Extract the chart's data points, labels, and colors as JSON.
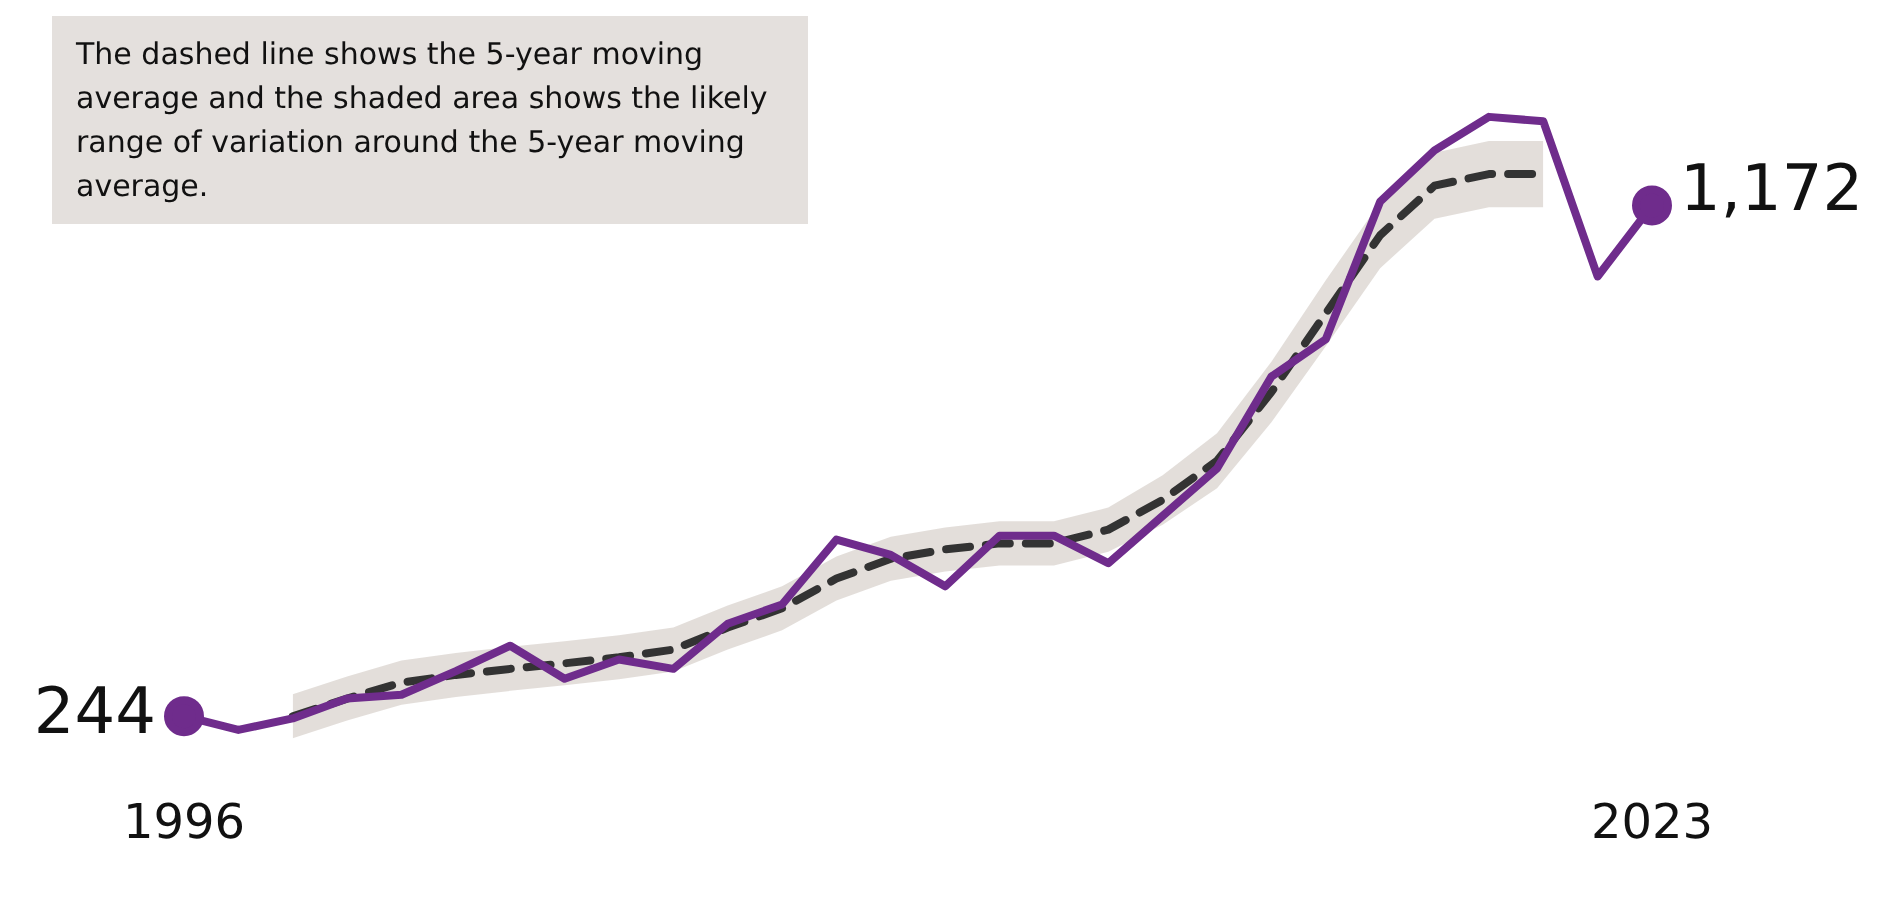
{
  "chart_data": {
    "type": "line",
    "x": [
      1996,
      1997,
      1998,
      1999,
      2000,
      2001,
      2002,
      2003,
      2004,
      2005,
      2006,
      2007,
      2008,
      2009,
      2010,
      2011,
      2012,
      2013,
      2014,
      2015,
      2016,
      2017,
      2018,
      2019,
      2020,
      2021,
      2022,
      2023
    ],
    "xlim": [
      1996,
      2023
    ],
    "xticks": [
      1996,
      2023
    ],
    "tick_labels": "x",
    "grid": false,
    "legend": false,
    "series": [
      {
        "color": "#6f2c8c",
        "line_style": "solid",
        "values": [
          244,
          219,
          240,
          276,
          283,
          326,
          372,
          312,
          347,
          330,
          412,
          447,
          565,
          537,
          480,
          572,
          572,
          522,
          608,
          694,
          861,
          929,
          1179,
          1272,
          1333,
          1325,
          1043,
          1172
        ],
        "value_labels": [
          "244",
          null,
          null,
          null,
          null,
          null,
          null,
          null,
          null,
          null,
          null,
          null,
          null,
          null,
          null,
          null,
          null,
          null,
          null,
          null,
          null,
          null,
          null,
          null,
          null,
          null,
          null,
          "1,172"
        ]
      },
      {
        "color": "#333333",
        "line_style": "dashed",
        "values": [
          null,
          null,
          244,
          276,
          305,
          319,
          330,
          340,
          351,
          365,
          405,
          440,
          494,
          530,
          547,
          558,
          558,
          583,
          637,
          708,
          833,
          976,
          1118,
          1208,
          1229,
          1229,
          null,
          null
        ],
        "lower": [
          null,
          null,
          204,
          236,
          265,
          279,
          290,
          300,
          311,
          325,
          365,
          400,
          454,
          490,
          507,
          518,
          518,
          543,
          592,
          658,
          778,
          916,
          1058,
          1148,
          1169,
          1169,
          null,
          null
        ],
        "upper": [
          null,
          null,
          284,
          316,
          345,
          359,
          370,
          380,
          391,
          405,
          445,
          480,
          534,
          570,
          587,
          598,
          598,
          623,
          682,
          758,
          888,
          1036,
          1178,
          1268,
          1289,
          1289,
          null,
          null
        ]
      }
    ],
    "annotations": [
      "The dashed line shows the 5-year moving average and the shaded area shows the likely range of variation around the 5-year moving average."
    ]
  }
}
